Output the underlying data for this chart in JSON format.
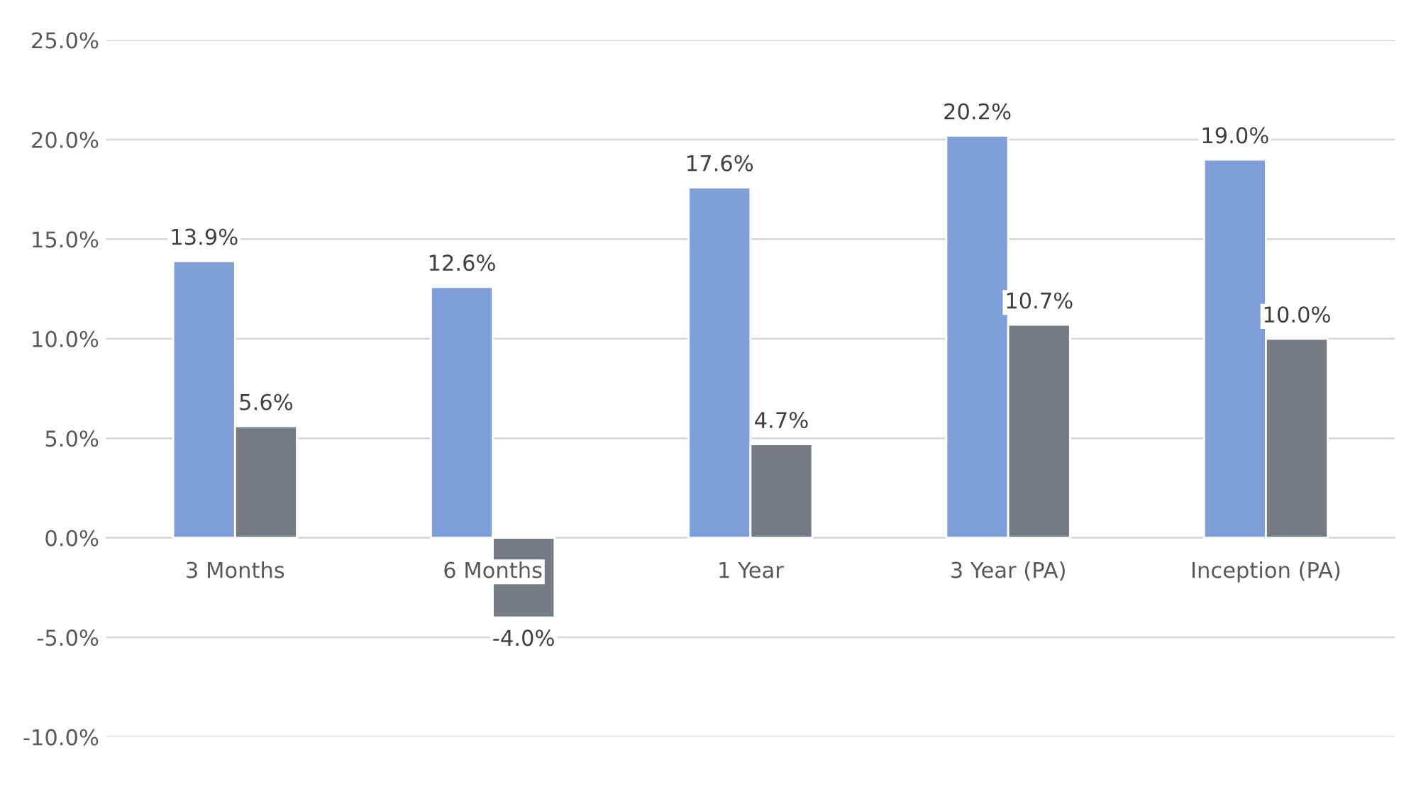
{
  "chart_data": {
    "type": "bar",
    "categories": [
      "3 Months",
      "6 Months",
      "1 Year",
      "3 Year (PA)",
      "Inception (PA)"
    ],
    "series": [
      {
        "color": "#7f9fd9",
        "values": [
          13.9,
          12.6,
          17.6,
          20.2,
          19.0
        ],
        "value_labels": [
          "13.9%",
          "12.6%",
          "17.6%",
          "20.2%",
          "19.0%"
        ]
      },
      {
        "color": "#767b85",
        "values": [
          5.6,
          -4.0,
          4.7,
          10.7,
          10.0
        ],
        "value_labels": [
          "5.6%",
          "-4.0%",
          "4.7%",
          "10.7%",
          "10.0%"
        ]
      }
    ],
    "ylim": [
      -10,
      25
    ],
    "yticks": [
      {
        "value": -10,
        "label": "-10.0%"
      },
      {
        "value": -5,
        "label": "-5.0%"
      },
      {
        "value": 0,
        "label": "0.0%"
      },
      {
        "value": 5,
        "label": "5.0%"
      },
      {
        "value": 10,
        "label": "10.0%"
      },
      {
        "value": 15,
        "label": "15.0%"
      },
      {
        "value": 20,
        "label": "20.0%"
      },
      {
        "value": 25,
        "label": "25.0%"
      }
    ],
    "grid": "y"
  }
}
